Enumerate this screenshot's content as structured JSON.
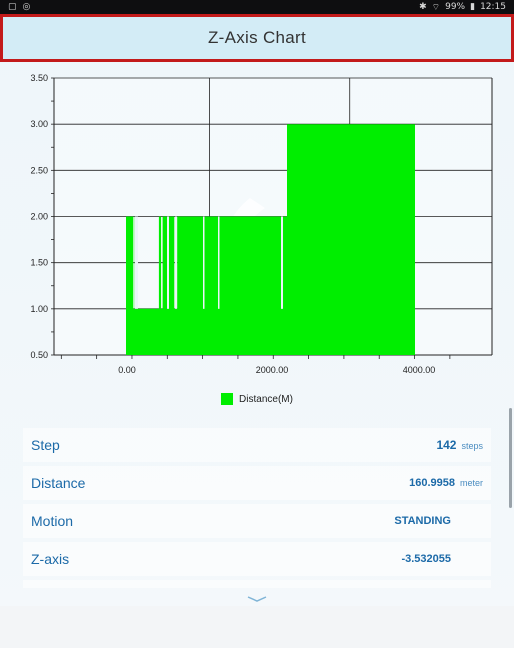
{
  "status_bar": {
    "left_icons": [
      "gallery-icon",
      "settings-icon"
    ],
    "right_text": "99%",
    "time": "12:15"
  },
  "header": {
    "title": "Z-Axis Chart"
  },
  "chart_data": {
    "type": "area",
    "title": "",
    "xlabel": "",
    "ylabel": "",
    "xlim": [
      -1000,
      5200
    ],
    "ylim": [
      0.5,
      3.5
    ],
    "x_ticks": [
      0,
      2000,
      4000
    ],
    "x_tick_labels": [
      "0.00",
      "2000.00",
      "4000.00"
    ],
    "y_ticks": [
      0.5,
      1.0,
      1.5,
      2.0,
      2.5,
      3.0,
      3.5
    ],
    "y_tick_labels": [
      "0.50",
      "1.00",
      "1.50",
      "2.00",
      "2.50",
      "3.00",
      "3.50"
    ],
    "grid": true,
    "legend_position": "bottom",
    "color": "#00ee00",
    "series": [
      {
        "name": "Distance(M)",
        "x": [
          0,
          0,
          100,
          100,
          120,
          120,
          140,
          140,
          170,
          170,
          450,
          450,
          480,
          480,
          500,
          500,
          660,
          660,
          700,
          700,
          2200,
          2200,
          2250,
          2250,
          3950,
          3950
        ],
        "y": [
          0.5,
          2.0,
          2.0,
          1.0,
          1.0,
          2.0,
          2.0,
          1.0,
          1.0,
          1.0,
          1.0,
          2.0,
          2.0,
          1.0,
          1.0,
          2.0,
          2.0,
          1.0,
          1.0,
          2.0,
          2.0,
          3.0,
          3.0,
          3.0,
          3.0,
          0.5
        ]
      }
    ]
  },
  "metrics": [
    {
      "label": "Step",
      "value": "142",
      "unit": "steps"
    },
    {
      "label": "Distance",
      "value": "160.9958",
      "unit": "meter"
    },
    {
      "label": "Motion",
      "value": "STANDING",
      "unit": ""
    },
    {
      "label": "Z-axis",
      "value": "-3.532055",
      "unit": ""
    }
  ]
}
